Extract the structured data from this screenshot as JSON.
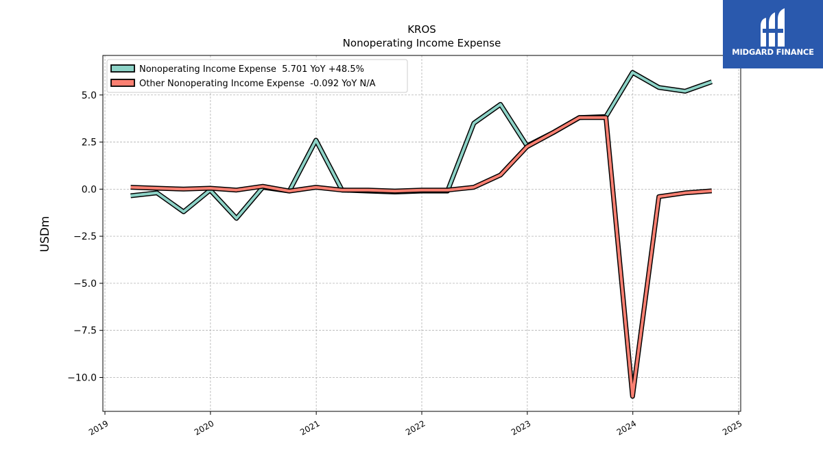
{
  "chart_data": {
    "type": "line",
    "title": "KROS",
    "subtitle": "Nonoperating Income Expense",
    "xlabel": "",
    "ylabel": "USDm",
    "xlim": [
      "2019-01-01",
      "2025-01-01"
    ],
    "ylim": [
      -11.8,
      7.1
    ],
    "x_ticks": [
      "2019",
      "2020",
      "2021",
      "2022",
      "2023",
      "2024",
      "2025"
    ],
    "y_ticks": [
      5.0,
      2.5,
      0.0,
      -2.5,
      -5.0,
      -7.5,
      -10.0
    ],
    "y_tick_labels": [
      "5.0",
      "2.5",
      "0.0",
      "−2.5",
      "−5.0",
      "−7.5",
      "−10.0"
    ],
    "grid": true,
    "legend_position": "top-left",
    "x": [
      "2019-03-31",
      "2019-06-30",
      "2019-09-30",
      "2019-12-31",
      "2020-03-31",
      "2020-06-30",
      "2020-09-30",
      "2020-12-31",
      "2021-03-31",
      "2021-06-30",
      "2021-09-30",
      "2021-12-31",
      "2022-03-31",
      "2022-06-30",
      "2022-09-30",
      "2022-12-31",
      "2023-03-31",
      "2023-06-30",
      "2023-09-30",
      "2023-12-31",
      "2024-03-31",
      "2024-06-30",
      "2024-09-30"
    ],
    "series": [
      {
        "name": "Nonoperating Income Expense",
        "legend_label": "Nonoperating Income Expense  5.701 YoY +48.5%",
        "color": "#8dd3c7",
        "values": [
          -0.35,
          -0.2,
          -1.2,
          -0.05,
          -1.55,
          0.1,
          -0.1,
          2.6,
          -0.05,
          -0.1,
          -0.15,
          -0.1,
          -0.1,
          3.5,
          4.5,
          2.3,
          3.0,
          3.8,
          3.85,
          6.2,
          5.4,
          5.2,
          5.701
        ]
      },
      {
        "name": "Other Nonoperating Income Expense",
        "legend_label": "Other Nonoperating Income Expense  -0.092 YoY N/A",
        "color": "#fb8072",
        "values": [
          0.1,
          0.05,
          0.0,
          0.05,
          -0.05,
          0.15,
          -0.1,
          0.1,
          -0.05,
          -0.05,
          -0.1,
          -0.05,
          -0.05,
          0.1,
          0.75,
          2.25,
          3.0,
          3.8,
          3.8,
          -11.0,
          -0.4,
          -0.2,
          -0.092
        ]
      }
    ]
  },
  "logo": {
    "text": "MIDGARD FINANCE"
  }
}
